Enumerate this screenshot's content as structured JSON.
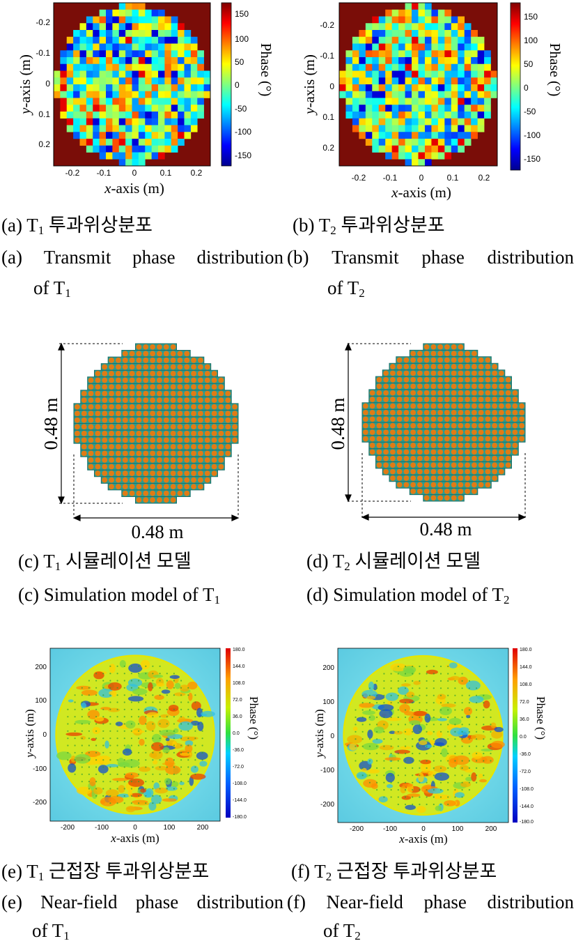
{
  "colors": {
    "outside": "#7a0d08",
    "orange": "#e07b15",
    "teal": "#2a9d90",
    "frame": "#000000"
  },
  "panels": {
    "a": {
      "x_label_var": "x",
      "x_label_rest": "-axis (m)",
      "y_label_var": "y",
      "y_label_rest": "-axis (m)",
      "x_ticks": [
        "-0.2",
        "-0.1",
        "0",
        "0.1",
        "0.2"
      ],
      "y_ticks": [
        "-0.2",
        "-0.1",
        "0",
        "0.1",
        "0.2"
      ],
      "cbar_ticks": [
        "150",
        "100",
        "50",
        "0",
        "-50",
        "-100",
        "-150"
      ],
      "cbar_label": "Phase (°)",
      "cap_ko_tag": "(a) ",
      "cap_ko_T": "T",
      "cap_ko_sub": "1",
      "cap_ko_text": " 투과위상분포",
      "cap_en_tag": "(a)",
      "cap_en_w1": "Transmit",
      "cap_en_w2": "phase",
      "cap_en_w3": "distribution",
      "cap_en_l2_pre": "of T",
      "cap_en_l2_sub": "1"
    },
    "b": {
      "x_label_var": "x",
      "x_label_rest": "-axis (m)",
      "y_label_var": "y",
      "y_label_rest": "-axis (m)",
      "x_ticks": [
        "-0.2",
        "-0.1",
        "0",
        "0.1",
        "0.2"
      ],
      "y_ticks": [
        "-0.2",
        "-0.1",
        "0",
        "0.1",
        "0.2"
      ],
      "cbar_ticks": [
        "150",
        "100",
        "50",
        "0",
        "-50",
        "-100",
        "-150"
      ],
      "cbar_label": "Phase (°)",
      "cap_ko_tag": "(b) ",
      "cap_ko_T": "T",
      "cap_ko_sub": "2",
      "cap_ko_text": " 투과위상분포",
      "cap_en_tag": "(b)",
      "cap_en_w1": "Transmit",
      "cap_en_w2": "phase",
      "cap_en_w3": "distribution",
      "cap_en_l2_pre": "of T",
      "cap_en_l2_sub": "2"
    },
    "c": {
      "dim_v": "0.48 m",
      "dim_h": "0.48 m",
      "cap_ko_tag": "(c) ",
      "cap_ko_T": "T",
      "cap_ko_sub": "1",
      "cap_ko_text": " 시뮬레이션 모델",
      "cap_en_pre": "(c) Simulation model of T",
      "cap_en_sub": "1"
    },
    "d": {
      "dim_v": "0.48 m",
      "dim_h": "0.48 m",
      "cap_ko_tag": "(d) ",
      "cap_ko_T": "T",
      "cap_ko_sub": "2",
      "cap_ko_text": " 시뮬레이션 모델",
      "cap_en_pre": "(d) Simulation model of T",
      "cap_en_sub": "2"
    },
    "e": {
      "x_label_var": "x",
      "x_label_rest": "-axis (m)",
      "y_label_var": "y",
      "y_label_rest": "-axis (m)",
      "x_ticks": [
        "-200",
        "-100",
        "0",
        "100",
        "200"
      ],
      "y_ticks": [
        "200",
        "100",
        "0",
        "-100",
        "-200"
      ],
      "cbar_ticks": [
        "180.0",
        "144.0",
        "108.0",
        "72.0",
        "36.0",
        "0.0",
        "-36.0",
        "-72.0",
        "-108.0",
        "-144.0",
        "-180.0"
      ],
      "cbar_label": "Phase (°)",
      "cap_ko_tag": "(e) ",
      "cap_ko_T": "T",
      "cap_ko_sub": "1",
      "cap_ko_text": " 근접장 투과위상분포",
      "cap_en_tag": "(e)",
      "cap_en_w1": "Near-field",
      "cap_en_w2": "phase",
      "cap_en_w3": "distribution",
      "cap_en_l2_pre": "of T",
      "cap_en_l2_sub": "1"
    },
    "f": {
      "x_label_var": "x",
      "x_label_rest": "-axis (m)",
      "y_label_var": "y",
      "y_label_rest": "-axis (m)",
      "x_ticks": [
        "-200",
        "-100",
        "0",
        "100",
        "200"
      ],
      "y_ticks": [
        "200",
        "100",
        "0",
        "-100",
        "-200"
      ],
      "cbar_ticks": [
        "180.0",
        "144.0",
        "108.0",
        "72.0",
        "36.0",
        "0.0",
        "-36.0",
        "-72.0",
        "-108.0",
        "-144.0",
        "-180.0"
      ],
      "cbar_label": "Phase (°)",
      "cap_ko_tag": "(f) ",
      "cap_ko_T": "T",
      "cap_ko_sub": "2",
      "cap_ko_text": " 근접장 투과위상분포",
      "cap_en_tag": "(f)",
      "cap_en_w1": "Near-field",
      "cap_en_w2": "phase",
      "cap_en_w3": "distribution",
      "cap_en_l2_pre": "of T",
      "cap_en_l2_sub": "2"
    }
  }
}
